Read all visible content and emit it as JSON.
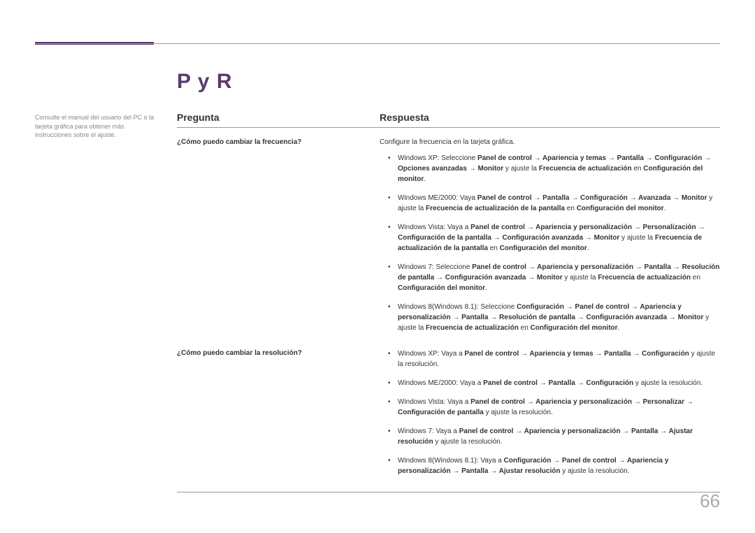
{
  "title": "P y R",
  "leftNote": "Consulte el manual del usuario del PC o la tarjeta gráfica para obtener más instrucciones sobre el ajuste.",
  "headers": {
    "question": "Pregunta",
    "answer": "Respuesta"
  },
  "rows": [
    {
      "question": "¿Cómo puedo cambiar la frecuencia?",
      "intro": "Configure la frecuencia en la tarjeta gráfica.",
      "items": [
        "Windows XP: Seleccione <b>Panel de control → Apariencia y temas → Pantalla → Configuración → Opciones avanzadas → Monitor</b> y ajuste la <b>Frecuencia de actualización</b> en <b>Configuración del monitor</b>.",
        "Windows ME/2000: Vaya <b>Panel de control → Pantalla → Configuración → Avanzada → Monitor</b> y ajuste la <b>Frecuencia de actualización de la pantalla</b> en <b>Configuración del monitor</b>.",
        "Windows Vista: Vaya a <b>Panel de control → Apariencia y personalización → Personalización → Configuración de la pantalla → Configuración avanzada → Monitor</b> y ajuste la <b>Frecuencia de actualización de la pantalla</b> en <b>Configuración del monitor</b>.",
        "Windows 7: Seleccione <b>Panel de control → Apariencia y personalización → Pantalla → Resolución de pantalla → Configuración avanzada → Monitor</b> y ajuste la <b>Frecuencia de actualización</b> en <b>Configuración del monitor</b>.",
        "Windows 8(Windows 8.1): Seleccione <b>Configuración → Panel de control → Apariencia y personalización → Pantalla → Resolución de pantalla → Configuración avanzada → Monitor</b> y ajuste la <b>Frecuencia de actualización</b> en <b>Configuración del monitor</b>."
      ]
    },
    {
      "question": "¿Cómo puedo cambiar la resolución?",
      "intro": "",
      "items": [
        "Windows XP: Vaya a <b>Panel de control → Apariencia y temas → Pantalla → Configuración</b> y ajuste la resolución.",
        "Windows ME/2000: Vaya a <b>Panel de control → Pantalla → Configuración</b> y ajuste la resolución.",
        "Windows Vista: Vaya a <b>Panel de control → Apariencia y personalización → Personalizar → Configuración de pantalla</b> y ajuste la resolución.",
        "Windows 7: Vaya a <b>Panel de control → Apariencia y personalización → Pantalla → Ajustar resolución</b> y ajuste la resolución.",
        "Windows 8(Windows 8.1): Vaya a <b>Configuración → Panel de control → Apariencia y personalización → Pantalla → Ajustar resolución</b> y ajuste la resolución."
      ]
    }
  ],
  "pageNumber": "66"
}
